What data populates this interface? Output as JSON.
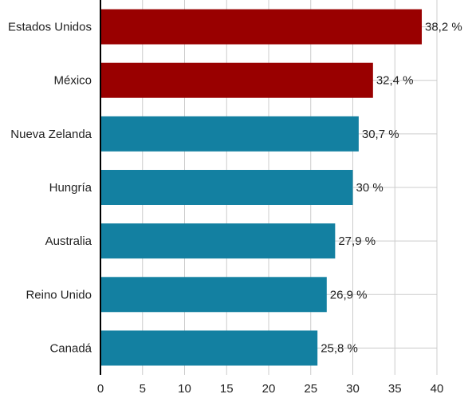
{
  "chart_data": {
    "type": "bar",
    "orientation": "horizontal",
    "categories": [
      "Estados Unidos",
      "México",
      "Nueva Zelanda",
      "Hungría",
      "Australia",
      "Reino Unido",
      "Canadá"
    ],
    "values": [
      38.2,
      32.4,
      30.7,
      30.0,
      27.9,
      26.9,
      25.8
    ],
    "data_labels": [
      "38,2 %",
      "32,4 %",
      "30,7 %",
      "30 %",
      "27,9 %",
      "26,9 %",
      "25,8 %"
    ],
    "highlighted": [
      true,
      true,
      false,
      false,
      false,
      false,
      false
    ],
    "colors": {
      "highlight": "#990000",
      "default": "#1380a1",
      "grid": "#cccccc",
      "axis": "#000000"
    },
    "xlim": [
      0,
      40
    ],
    "x_ticks": [
      0,
      5,
      10,
      15,
      20,
      25,
      30,
      35,
      40
    ],
    "grid": true,
    "legend": "none"
  }
}
